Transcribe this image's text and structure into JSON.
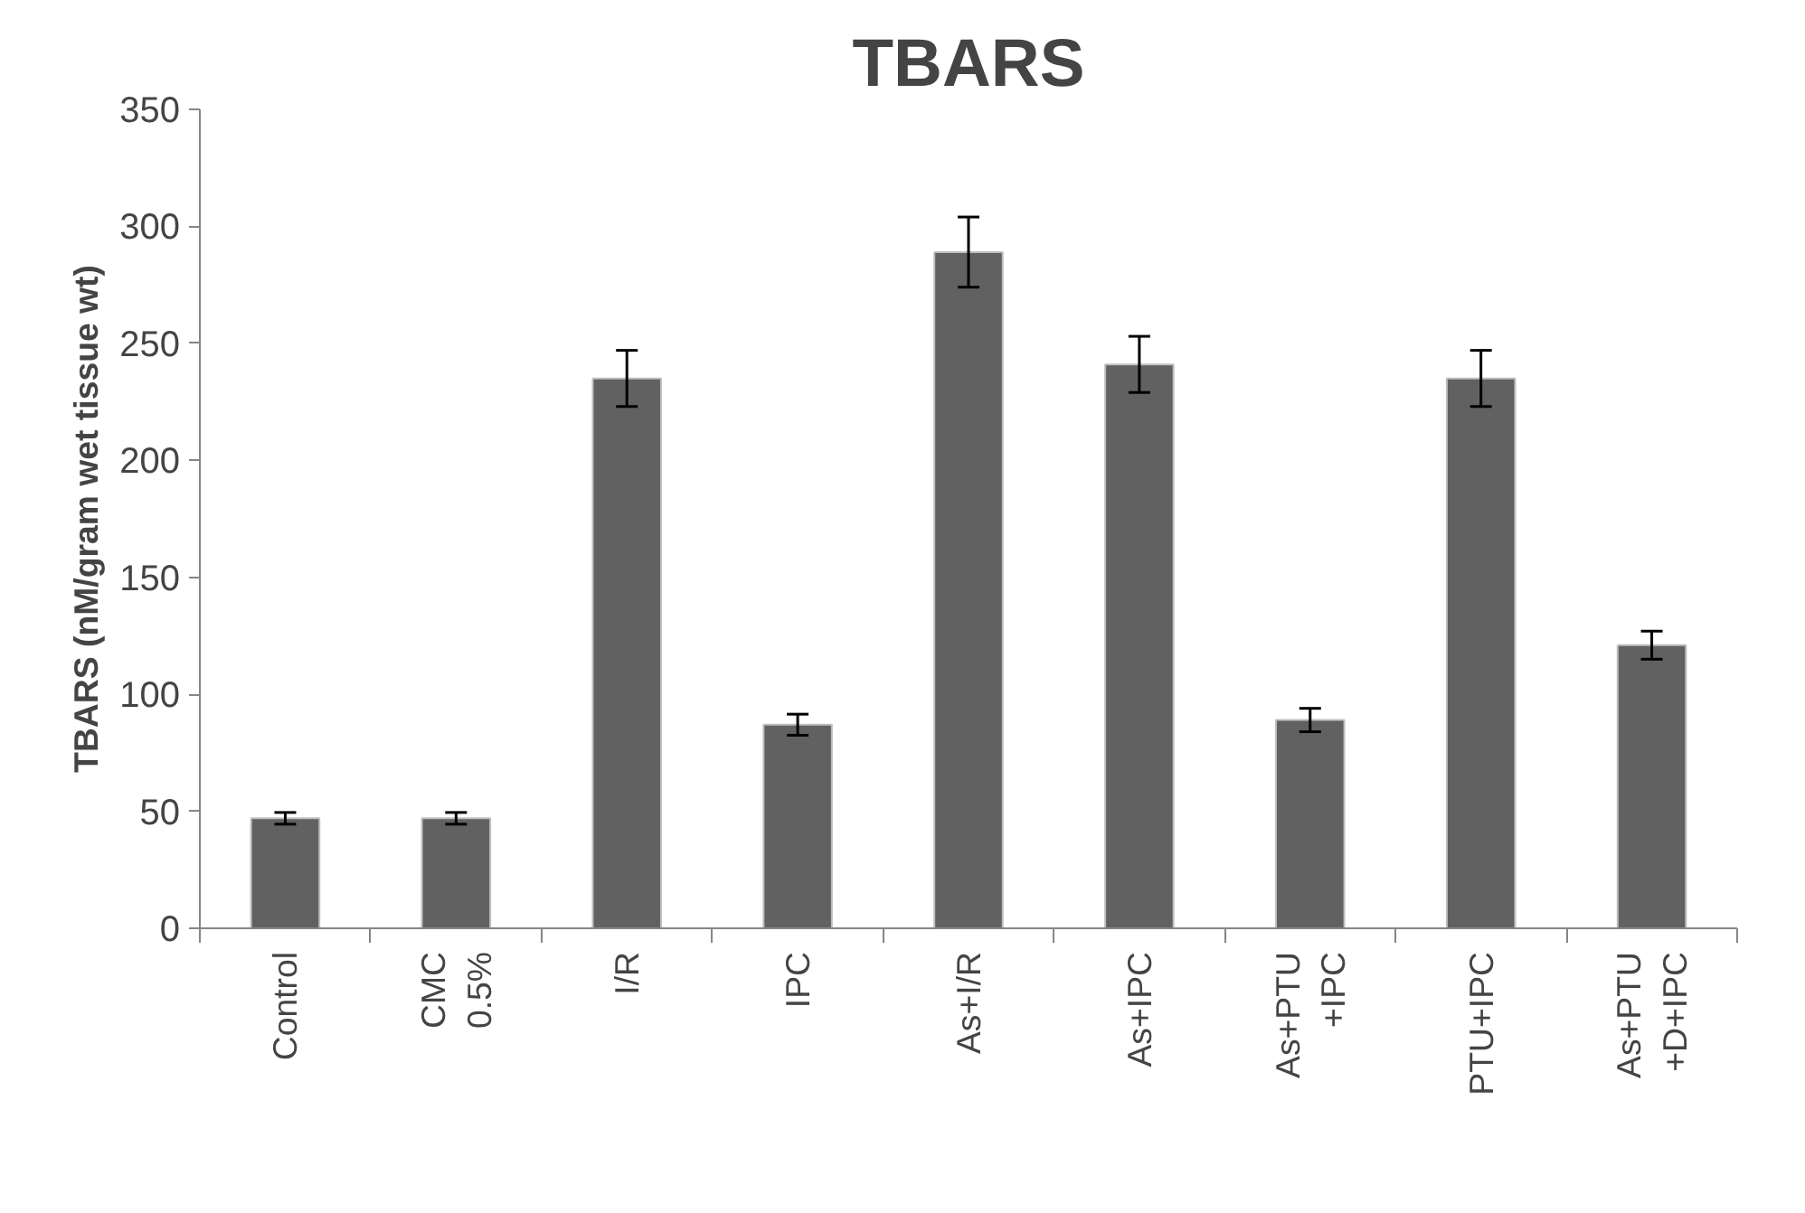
{
  "chart_data": {
    "type": "bar",
    "title": "TBARS",
    "ylabel": "TBARS (nM/gram wet tissue wt)",
    "categories": [
      "Control",
      "CMC\n0.5%",
      "I/R",
      "IPC",
      "As+I/R",
      "As+IPC",
      "As+PTU\n+IPC",
      "PTU+IPC",
      "As+PTU\n+D+IPC"
    ],
    "values": [
      47,
      47,
      235,
      87,
      289,
      241,
      89,
      235,
      121
    ],
    "errors": [
      2.5,
      2.5,
      12,
      4.5,
      15,
      12,
      5,
      12,
      6
    ],
    "color": "#616161",
    "ylim": [
      0,
      350
    ],
    "yticks": [
      0,
      50,
      100,
      150,
      200,
      250,
      300,
      350
    ],
    "grid": false
  }
}
